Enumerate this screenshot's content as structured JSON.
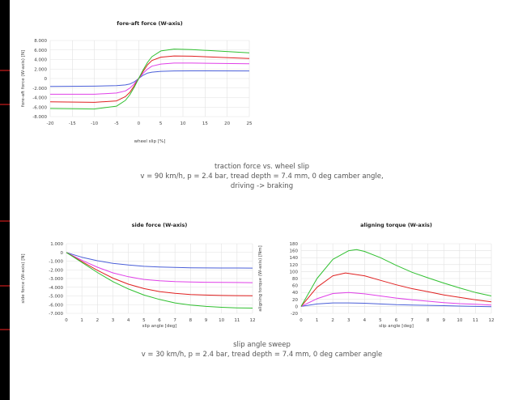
{
  "chart_data": [
    {
      "type": "line",
      "title": "fore-aft force (W-axis)",
      "xlabel": "wheel slip [%]",
      "ylabel": "fore-aft force (W-axis) [N]",
      "xlim": [
        -20,
        25
      ],
      "ylim": [
        -8000,
        8000
      ],
      "xticks": [
        -20,
        -15,
        -10,
        -5,
        0,
        5,
        10,
        15,
        20,
        25
      ],
      "xtick_labels": [
        "-20",
        "-15",
        "-10",
        "-5",
        "0",
        "5",
        "10",
        "15",
        "20",
        "25"
      ],
      "yticks": [
        -8000,
        -6000,
        -4000,
        -2000,
        0,
        2000,
        4000,
        6000,
        8000
      ],
      "ytick_labels": [
        "-8.000",
        "-6.000",
        "-4.000",
        "-2.000",
        "0",
        "2.000",
        "4.000",
        "6.000",
        "8.000"
      ],
      "grid": true,
      "series": [
        {
          "color": "#4a5fd8",
          "x": [
            -20,
            -10,
            -5,
            -3,
            -2,
            -1,
            0,
            1,
            2,
            3,
            5,
            8,
            12,
            25
          ],
          "y": [
            -1650,
            -1600,
            -1500,
            -1350,
            -1150,
            -700,
            0,
            700,
            1150,
            1350,
            1520,
            1600,
            1620,
            1600
          ]
        },
        {
          "color": "#e040e8",
          "x": [
            -20,
            -10,
            -5,
            -3,
            -2,
            -1,
            0,
            1,
            2,
            3,
            5,
            8,
            12,
            25
          ],
          "y": [
            -3300,
            -3300,
            -3050,
            -2600,
            -2000,
            -1100,
            0,
            1100,
            2000,
            2600,
            3050,
            3250,
            3250,
            3100
          ]
        },
        {
          "color": "#e02020",
          "x": [
            -20,
            -10,
            -5,
            -3,
            -2,
            -1,
            0,
            1,
            2,
            3,
            5,
            8,
            12,
            25
          ],
          "y": [
            -4900,
            -5000,
            -4700,
            -3800,
            -2900,
            -1500,
            0,
            1500,
            2900,
            3800,
            4500,
            4750,
            4700,
            4200
          ]
        },
        {
          "color": "#30c030",
          "x": [
            -20,
            -10,
            -5,
            -3,
            -2,
            -1,
            0,
            1,
            2,
            3,
            5,
            8,
            12,
            25
          ],
          "y": [
            -6300,
            -6400,
            -5800,
            -4600,
            -3400,
            -1800,
            0,
            1800,
            3400,
            4600,
            5800,
            6200,
            6100,
            5400
          ]
        }
      ]
    },
    {
      "type": "line",
      "title": "side force (W-axis)",
      "xlabel": "slip angle [deg]",
      "ylabel": "side force (W-axis) [N]",
      "xlim": [
        0,
        12
      ],
      "ylim": [
        -7000,
        1000
      ],
      "xticks": [
        0,
        1,
        2,
        3,
        4,
        5,
        6,
        7,
        8,
        9,
        10,
        11,
        12
      ],
      "xtick_labels": [
        "0",
        "1",
        "2",
        "3",
        "4",
        "5",
        "6",
        "7",
        "8",
        "9",
        "10",
        "11",
        "12"
      ],
      "yticks": [
        -7000,
        -6000,
        -5000,
        -4000,
        -3000,
        -2000,
        -1000,
        0,
        1000
      ],
      "ytick_labels": [
        "-7.000",
        "-6.000",
        "-5.000",
        "-4.000",
        "-3.000",
        "-2.000",
        "-1.000",
        "0",
        "1.000"
      ],
      "grid": true,
      "series": [
        {
          "color": "#4a5fd8",
          "x": [
            0,
            1,
            2,
            3,
            4,
            5,
            6,
            7,
            8,
            9,
            10,
            11,
            12
          ],
          "y": [
            0,
            -550,
            -950,
            -1250,
            -1450,
            -1600,
            -1680,
            -1730,
            -1760,
            -1780,
            -1790,
            -1795,
            -1800
          ]
        },
        {
          "color": "#e040e8",
          "x": [
            0,
            1,
            2,
            3,
            4,
            5,
            6,
            7,
            8,
            9,
            10,
            11,
            12
          ],
          "y": [
            0,
            -900,
            -1700,
            -2350,
            -2800,
            -3100,
            -3250,
            -3350,
            -3400,
            -3430,
            -3450,
            -3460,
            -3470
          ]
        },
        {
          "color": "#e02020",
          "x": [
            0,
            1,
            2,
            3,
            4,
            5,
            6,
            7,
            8,
            9,
            10,
            11,
            12
          ],
          "y": [
            0,
            -1050,
            -2050,
            -2950,
            -3650,
            -4150,
            -4500,
            -4700,
            -4830,
            -4900,
            -4940,
            -4960,
            -4980
          ]
        },
        {
          "color": "#30c030",
          "x": [
            0,
            1,
            2,
            3,
            4,
            5,
            6,
            7,
            8,
            9,
            10,
            11,
            12
          ],
          "y": [
            0,
            -1150,
            -2300,
            -3350,
            -4200,
            -4900,
            -5400,
            -5800,
            -6050,
            -6200,
            -6300,
            -6370,
            -6400
          ]
        }
      ]
    },
    {
      "type": "line",
      "title": "aligning torque (W-axis)",
      "xlabel": "slip angle [deg]",
      "ylabel": "aligning torque (W-axis) [Nm]",
      "xlim": [
        0,
        12
      ],
      "ylim": [
        -20,
        180
      ],
      "xticks": [
        0,
        1,
        2,
        3,
        4,
        5,
        6,
        7,
        8,
        9,
        10,
        11,
        12
      ],
      "xtick_labels": [
        "0",
        "1",
        "2",
        "3",
        "4",
        "5",
        "6",
        "7",
        "8",
        "9",
        "10",
        "11",
        "12"
      ],
      "yticks": [
        -20,
        0,
        20,
        40,
        60,
        80,
        100,
        120,
        140,
        160,
        180
      ],
      "ytick_labels": [
        "-20",
        "0",
        "20",
        "40",
        "60",
        "80",
        "100",
        "120",
        "140",
        "160",
        "180"
      ],
      "grid": true,
      "series": [
        {
          "color": "#4a5fd8",
          "x": [
            0,
            1,
            2,
            3,
            4,
            5,
            6,
            7,
            8,
            9,
            10,
            11,
            12
          ],
          "y": [
            0,
            7,
            10,
            10,
            9,
            7,
            5,
            4,
            3,
            2,
            1,
            0,
            -1
          ]
        },
        {
          "color": "#e040e8",
          "x": [
            0,
            1,
            2,
            3,
            4,
            5,
            6,
            7,
            8,
            9,
            10,
            11,
            12
          ],
          "y": [
            0,
            22,
            37,
            40,
            36,
            30,
            24,
            19,
            15,
            11,
            8,
            6,
            4
          ]
        },
        {
          "color": "#e02020",
          "x": [
            0,
            1,
            2,
            2.8,
            4,
            5,
            6,
            7,
            8,
            9,
            10,
            11,
            12
          ],
          "y": [
            0,
            55,
            88,
            96,
            88,
            75,
            62,
            51,
            42,
            33,
            26,
            19,
            13
          ]
        },
        {
          "color": "#30c030",
          "x": [
            0,
            1,
            2,
            3,
            3.5,
            4,
            5,
            6,
            7,
            8,
            9,
            10,
            11,
            12
          ],
          "y": [
            0,
            80,
            135,
            160,
            163,
            158,
            140,
            118,
            98,
            82,
            67,
            53,
            40,
            30
          ]
        }
      ]
    }
  ],
  "captions": {
    "top": {
      "line1": "traction force vs. wheel slip",
      "line2": "v = 90 km/h, p = 2.4 bar, tread depth = 7.4 mm, 0 deg camber angle,",
      "line3": "driving -> braking"
    },
    "bottom": {
      "line1": "slip angle sweep",
      "line2": "v = 30 km/h, p = 2.4 bar, tread depth = 7.4 mm, 0 deg camber angle"
    }
  }
}
